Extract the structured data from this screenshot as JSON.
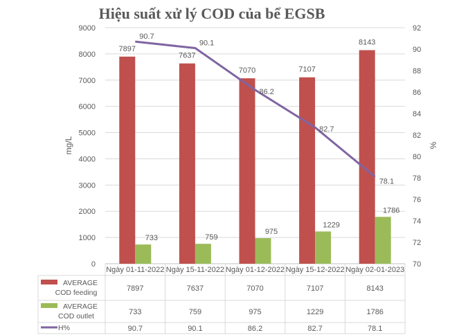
{
  "chart_data": {
    "type": "bar",
    "title": "Hiệu suất xử lý COD của bể EGSB",
    "categories": [
      "Ngày 01-11-2022",
      "Ngày 15-11-2022",
      "Ngày 01-12-2022",
      "Ngày 15-12-2022",
      "Ngày 02-01-2023"
    ],
    "ylabel": "mg/L",
    "y2label": "%",
    "ylim": [
      0,
      9000
    ],
    "yticks": [
      0,
      1000,
      2000,
      3000,
      4000,
      5000,
      6000,
      7000,
      8000,
      9000
    ],
    "y2lim": [
      70,
      92
    ],
    "y2ticks": [
      70,
      72,
      74,
      76,
      78,
      80,
      82,
      84,
      86,
      88,
      90,
      92
    ],
    "grid": true,
    "legend": "data-table",
    "series": [
      {
        "name": "AVERAGE COD feeding",
        "type": "bar",
        "axis": "left",
        "color": "#c0504d",
        "values": [
          7897,
          7637,
          7070,
          7107,
          8143
        ]
      },
      {
        "name": "AVERAGE COD outlet",
        "type": "bar",
        "axis": "left",
        "color": "#9bbb59",
        "values": [
          733,
          759,
          975,
          1229,
          1786
        ]
      },
      {
        "name": "H%",
        "type": "line",
        "axis": "right",
        "color": "#8064a2",
        "values": [
          90.7,
          90.1,
          86.2,
          82.7,
          78.1
        ]
      }
    ]
  }
}
